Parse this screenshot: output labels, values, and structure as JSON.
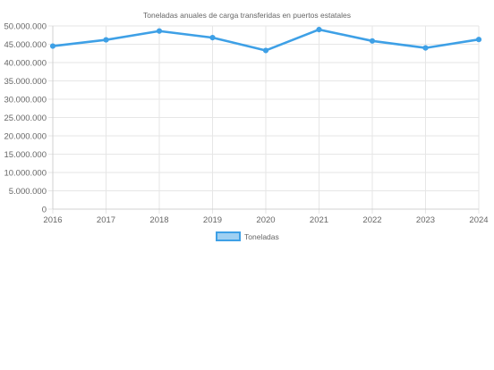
{
  "colors": {
    "series_line": "#3ea0e6",
    "series_fill": "#9fd0f2",
    "grid": "#e6e6e6",
    "text": "#666666"
  },
  "chart_data": {
    "type": "line",
    "title": "Toneladas anuales de carga transferidas en puertos estatales",
    "xlabel": "",
    "ylabel": "",
    "x": [
      "2016",
      "2017",
      "2018",
      "2019",
      "2020",
      "2021",
      "2022",
      "2023",
      "2024"
    ],
    "series": [
      {
        "name": "Toneladas",
        "values": [
          44500000,
          46200000,
          48600000,
          46800000,
          43300000,
          49000000,
          45900000,
          44000000,
          46300000
        ]
      }
    ],
    "ylim": [
      0,
      50000000
    ],
    "yticks": [
      0,
      5000000,
      10000000,
      15000000,
      20000000,
      25000000,
      30000000,
      35000000,
      40000000,
      45000000,
      50000000
    ],
    "ytick_labels": [
      "0",
      "5.000.000",
      "10.000.000",
      "15.000.000",
      "20.000.000",
      "25.000.000",
      "30.000.000",
      "35.000.000",
      "40.000.000",
      "45.000.000",
      "50.000.000"
    ],
    "grid": true,
    "legend": "bottom"
  }
}
